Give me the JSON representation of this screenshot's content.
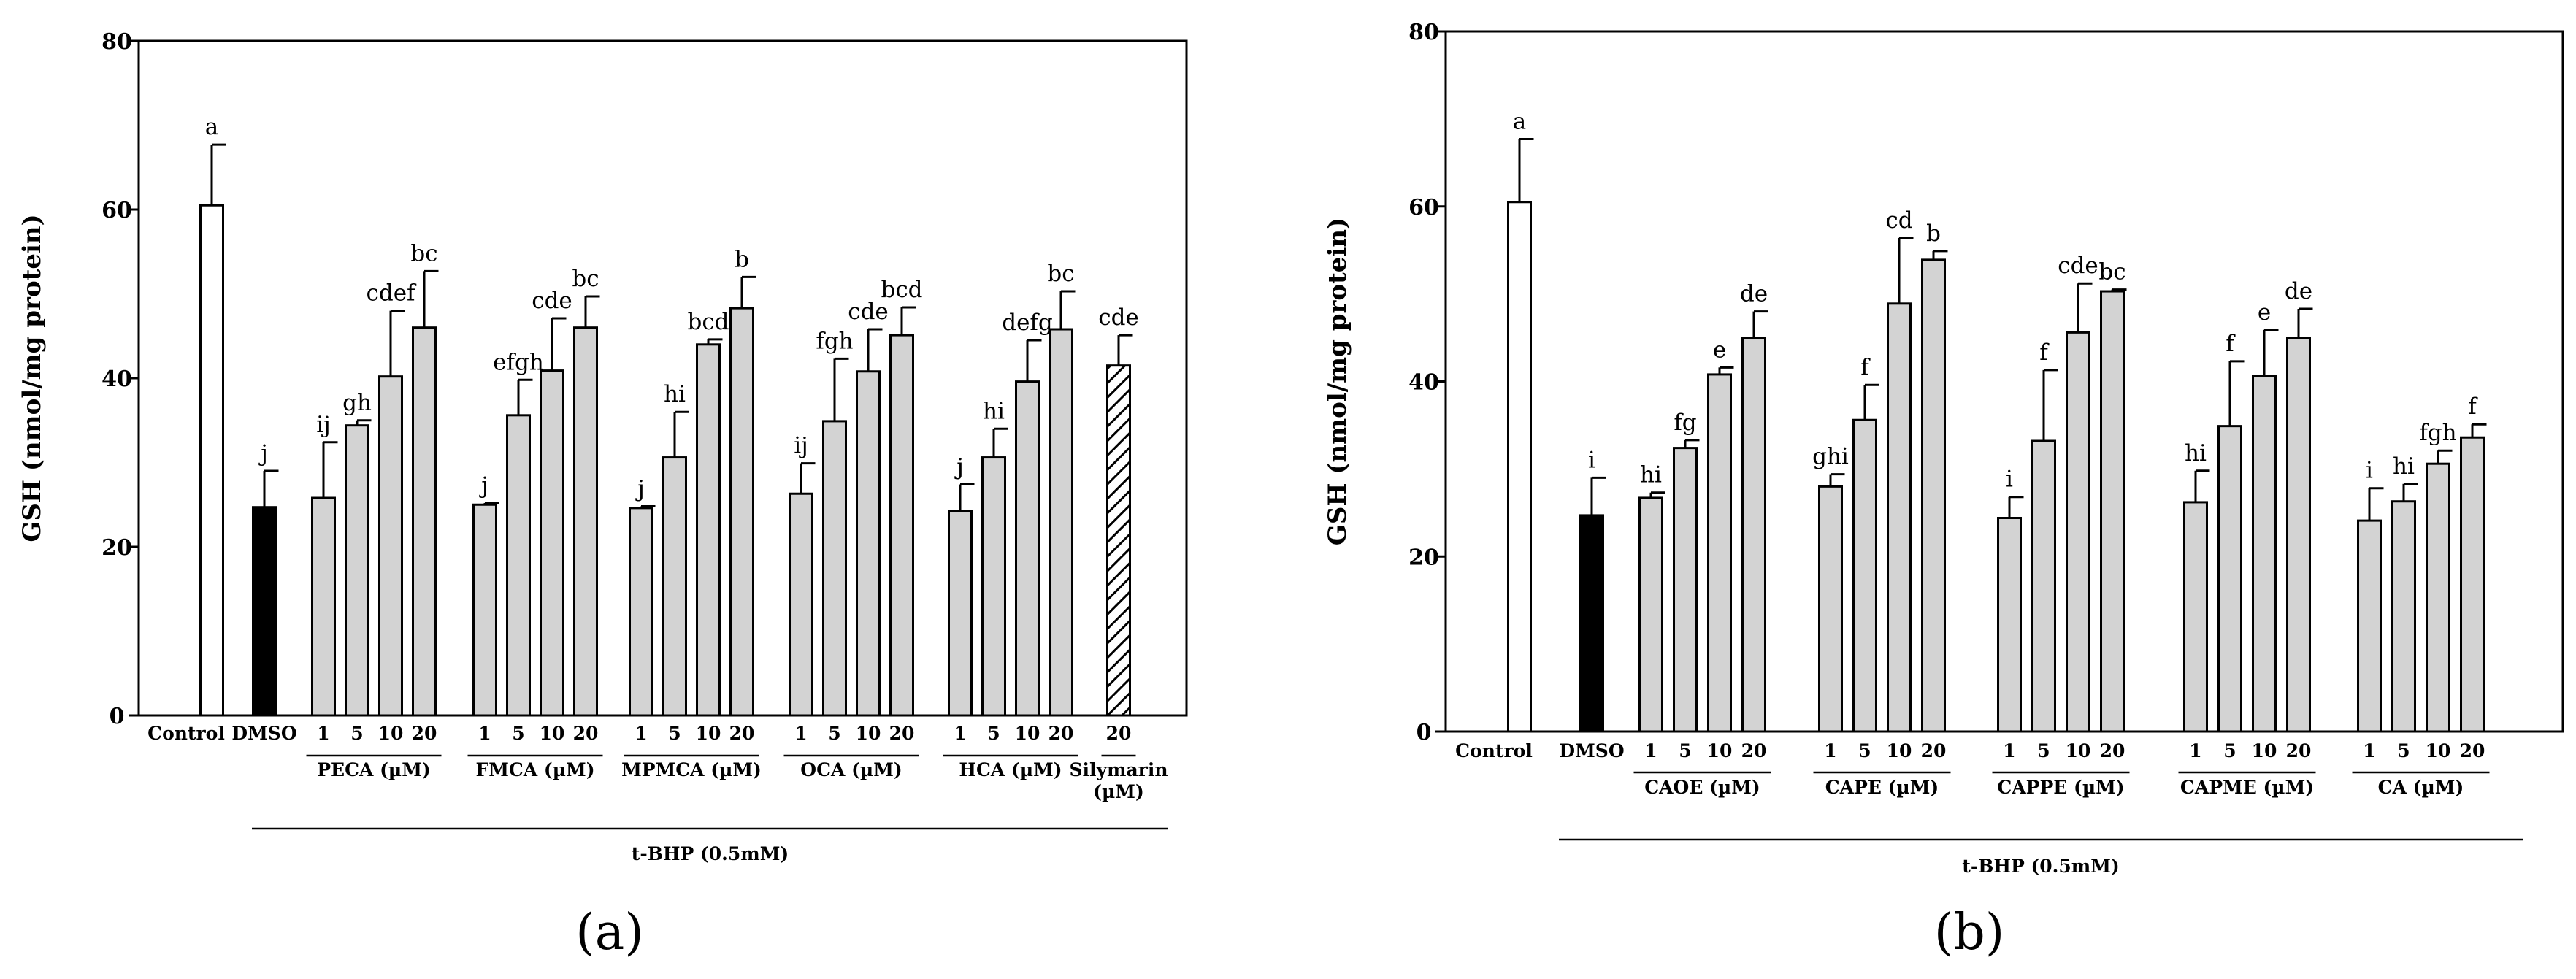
{
  "chart_data": [
    {
      "type": "bar",
      "panel_label": "(a)",
      "ylabel": "GSH (nmol/mg protein)",
      "ylim": [
        0,
        80
      ],
      "yticks": [
        0,
        20,
        40,
        60,
        80
      ],
      "treatment_label": "t-BHP (0.5mM)",
      "controls": [
        {
          "name": "Control",
          "value": 60.5,
          "error": 7.2,
          "letter": "a",
          "fill": "#ffffff"
        },
        {
          "name": "DMSO",
          "value": 24.7,
          "error": 4.3,
          "letter": "j",
          "fill": "#000000"
        }
      ],
      "groups": [
        {
          "name": "PECA (µM)",
          "doses": [
            "1",
            "5",
            "10",
            "20"
          ],
          "values": [
            25.8,
            34.4,
            40.2,
            46.0
          ],
          "errors": [
            6.6,
            0.6,
            7.8,
            6.7
          ],
          "letters": [
            "ij",
            "gh",
            "cdef",
            "bc"
          ]
        },
        {
          "name": "FMCA (µM)",
          "doses": [
            "1",
            "5",
            "10",
            "20"
          ],
          "values": [
            25.0,
            35.6,
            40.9,
            46.0
          ],
          "errors": [
            0.2,
            4.2,
            6.2,
            3.7
          ],
          "letters": [
            "j",
            "efgh",
            "cde",
            "bc"
          ]
        },
        {
          "name": "MPMCA (µM)",
          "doses": [
            "1",
            "5",
            "10",
            "20"
          ],
          "values": [
            24.6,
            30.6,
            44.0,
            48.3
          ],
          "errors": [
            0.2,
            5.4,
            0.6,
            3.7
          ],
          "letters": [
            "j",
            "hi",
            "bcd",
            "b"
          ]
        },
        {
          "name": "OCA (µM)",
          "doses": [
            "1",
            "5",
            "10",
            "20"
          ],
          "values": [
            26.3,
            34.9,
            40.8,
            45.1
          ],
          "errors": [
            3.6,
            7.4,
            5.0,
            3.3
          ],
          "letters": [
            "ij",
            "fgh",
            "cde",
            "bcd"
          ]
        },
        {
          "name": "HCA (µM)",
          "doses": [
            "1",
            "5",
            "10",
            "20"
          ],
          "values": [
            24.2,
            30.6,
            39.6,
            45.8
          ],
          "errors": [
            3.2,
            3.4,
            4.9,
            4.5
          ],
          "letters": [
            "j",
            "hi",
            "defg",
            "bc"
          ]
        },
        {
          "name": "Silymarin (µM)",
          "name_lines": [
            "Silymarin",
            "(µM)"
          ],
          "doses": [
            "20"
          ],
          "values": [
            41.5
          ],
          "errors": [
            3.6
          ],
          "letters": [
            "cde"
          ],
          "hatched": true
        }
      ]
    },
    {
      "type": "bar",
      "panel_label": "(b)",
      "ylabel": "GSH (nmol/mg protein)",
      "ylim": [
        0,
        80
      ],
      "yticks": [
        0,
        20,
        40,
        60,
        80
      ],
      "treatment_label": "t-BHP  (0.5mM)",
      "controls": [
        {
          "name": "Control",
          "value": 60.5,
          "error": 7.2,
          "letter": "a",
          "fill": "#ffffff"
        },
        {
          "name": "DMSO",
          "value": 24.7,
          "error": 4.3,
          "letter": "i",
          "fill": "#000000"
        }
      ],
      "groups": [
        {
          "name": "CAOE (µM)",
          "doses": [
            "1",
            "5",
            "10",
            "20"
          ],
          "values": [
            26.7,
            32.4,
            40.8,
            45.0
          ],
          "errors": [
            0.6,
            0.9,
            0.8,
            3.0
          ],
          "letters": [
            "hi",
            "fg",
            "e",
            "de"
          ]
        },
        {
          "name": "CAPE (µM)",
          "doses": [
            "1",
            "5",
            "10",
            "20"
          ],
          "values": [
            28.0,
            35.6,
            48.9,
            53.9
          ],
          "errors": [
            1.4,
            4.0,
            7.5,
            1.0
          ],
          "letters": [
            "ghi",
            "f",
            "cd",
            "b"
          ]
        },
        {
          "name": "CAPPE (µM)",
          "doses": [
            "1",
            "5",
            "10",
            "20"
          ],
          "values": [
            24.4,
            33.2,
            45.6,
            50.3
          ],
          "errors": [
            2.4,
            8.1,
            5.6,
            0.2
          ],
          "letters": [
            "i",
            "f",
            "cde",
            "bc"
          ]
        },
        {
          "name": "CAPME (µM)",
          "doses": [
            "1",
            "5",
            "10",
            "20"
          ],
          "values": [
            26.2,
            34.9,
            40.6,
            45.0
          ],
          "errors": [
            3.6,
            7.4,
            5.3,
            3.3
          ],
          "letters": [
            "hi",
            "f",
            "e",
            "de"
          ]
        },
        {
          "name": "CA (µM)",
          "doses": [
            "1",
            "5",
            "10",
            "20"
          ],
          "values": [
            24.1,
            26.3,
            30.6,
            33.6
          ],
          "errors": [
            3.7,
            2.0,
            1.5,
            1.5
          ],
          "letters": [
            "i",
            "hi",
            "fgh",
            "f"
          ]
        }
      ]
    }
  ]
}
